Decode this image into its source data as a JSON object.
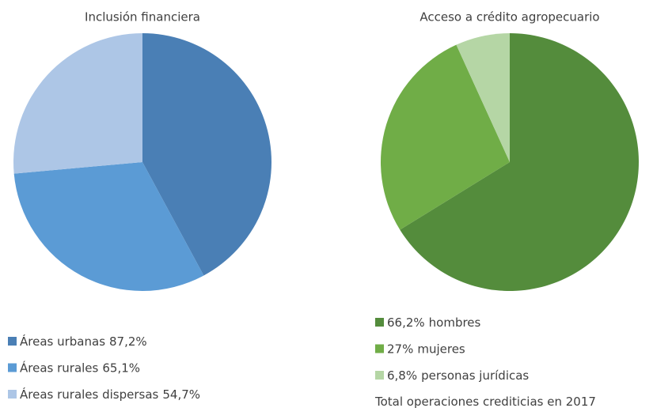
{
  "chart_data": [
    {
      "type": "pie",
      "title": "Inclusión financiera",
      "categories": [
        "Áreas urbanas",
        "Áreas rurales",
        "Áreas rurales dispersas"
      ],
      "values": [
        87.2,
        65.1,
        54.7
      ],
      "value_labels": [
        "87,2%",
        "65,1%",
        "54,7%"
      ],
      "colors": [
        "#4a7fb5",
        "#5b9bd5",
        "#adc6e6"
      ],
      "legend_value_first": false
    },
    {
      "type": "pie",
      "title": "Acceso a crédito agropecuario",
      "categories": [
        "hombres",
        "mujeres",
        "personas jurídicas"
      ],
      "values": [
        66.2,
        27,
        6.8
      ],
      "value_labels": [
        "66,2%",
        "27%",
        "6,8%"
      ],
      "colors": [
        "#548c3c",
        "#70ad47",
        "#b5d6a5"
      ],
      "legend_value_first": true,
      "note": "Total operaciones crediticias en 2017"
    }
  ]
}
